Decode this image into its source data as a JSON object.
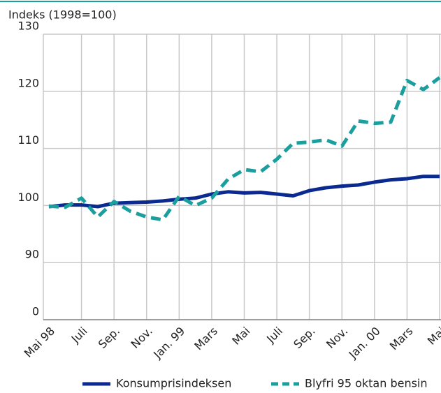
{
  "chart_data": {
    "type": "line",
    "y_label": "Indeks (1998=100)",
    "categories": [
      "Mai 98",
      null,
      "Juli",
      null,
      "Sep.",
      null,
      "Nov.",
      null,
      "Jan. 99",
      null,
      "Mars",
      null,
      "Mai",
      null,
      "Juli",
      null,
      "Sep.",
      null,
      "Nov.",
      null,
      "Jan. 00",
      null,
      "Mars",
      null,
      "Mai"
    ],
    "series": [
      {
        "name": "Konsumprisindeksen",
        "color": "#0b2a8f",
        "dashed": false,
        "values": [
          99.8,
          100.1,
          100.1,
          99.8,
          100.4,
          100.5,
          100.6,
          100.8,
          101.1,
          101.3,
          102.0,
          102.4,
          102.2,
          102.3,
          102.0,
          101.7,
          102.6,
          103.1,
          103.4,
          103.6,
          104.1,
          104.5,
          104.7,
          105.1,
          105.1
        ]
      },
      {
        "name": "Blyfri 95 oktan bensin",
        "color": "#1a9e9e",
        "dashed": true,
        "values": [
          99.9,
          99.7,
          101.3,
          98.0,
          100.7,
          99.0,
          98.0,
          97.5,
          101.6,
          100.0,
          101.3,
          104.6,
          106.3,
          105.9,
          108.1,
          110.9,
          111.1,
          111.5,
          110.4,
          114.8,
          114.4,
          114.6,
          121.9,
          120.3,
          122.4
        ]
      }
    ],
    "ylim": [
      0,
      130
    ],
    "yticks": [
      0,
      90,
      100,
      110,
      120,
      130
    ],
    "grid": true
  }
}
